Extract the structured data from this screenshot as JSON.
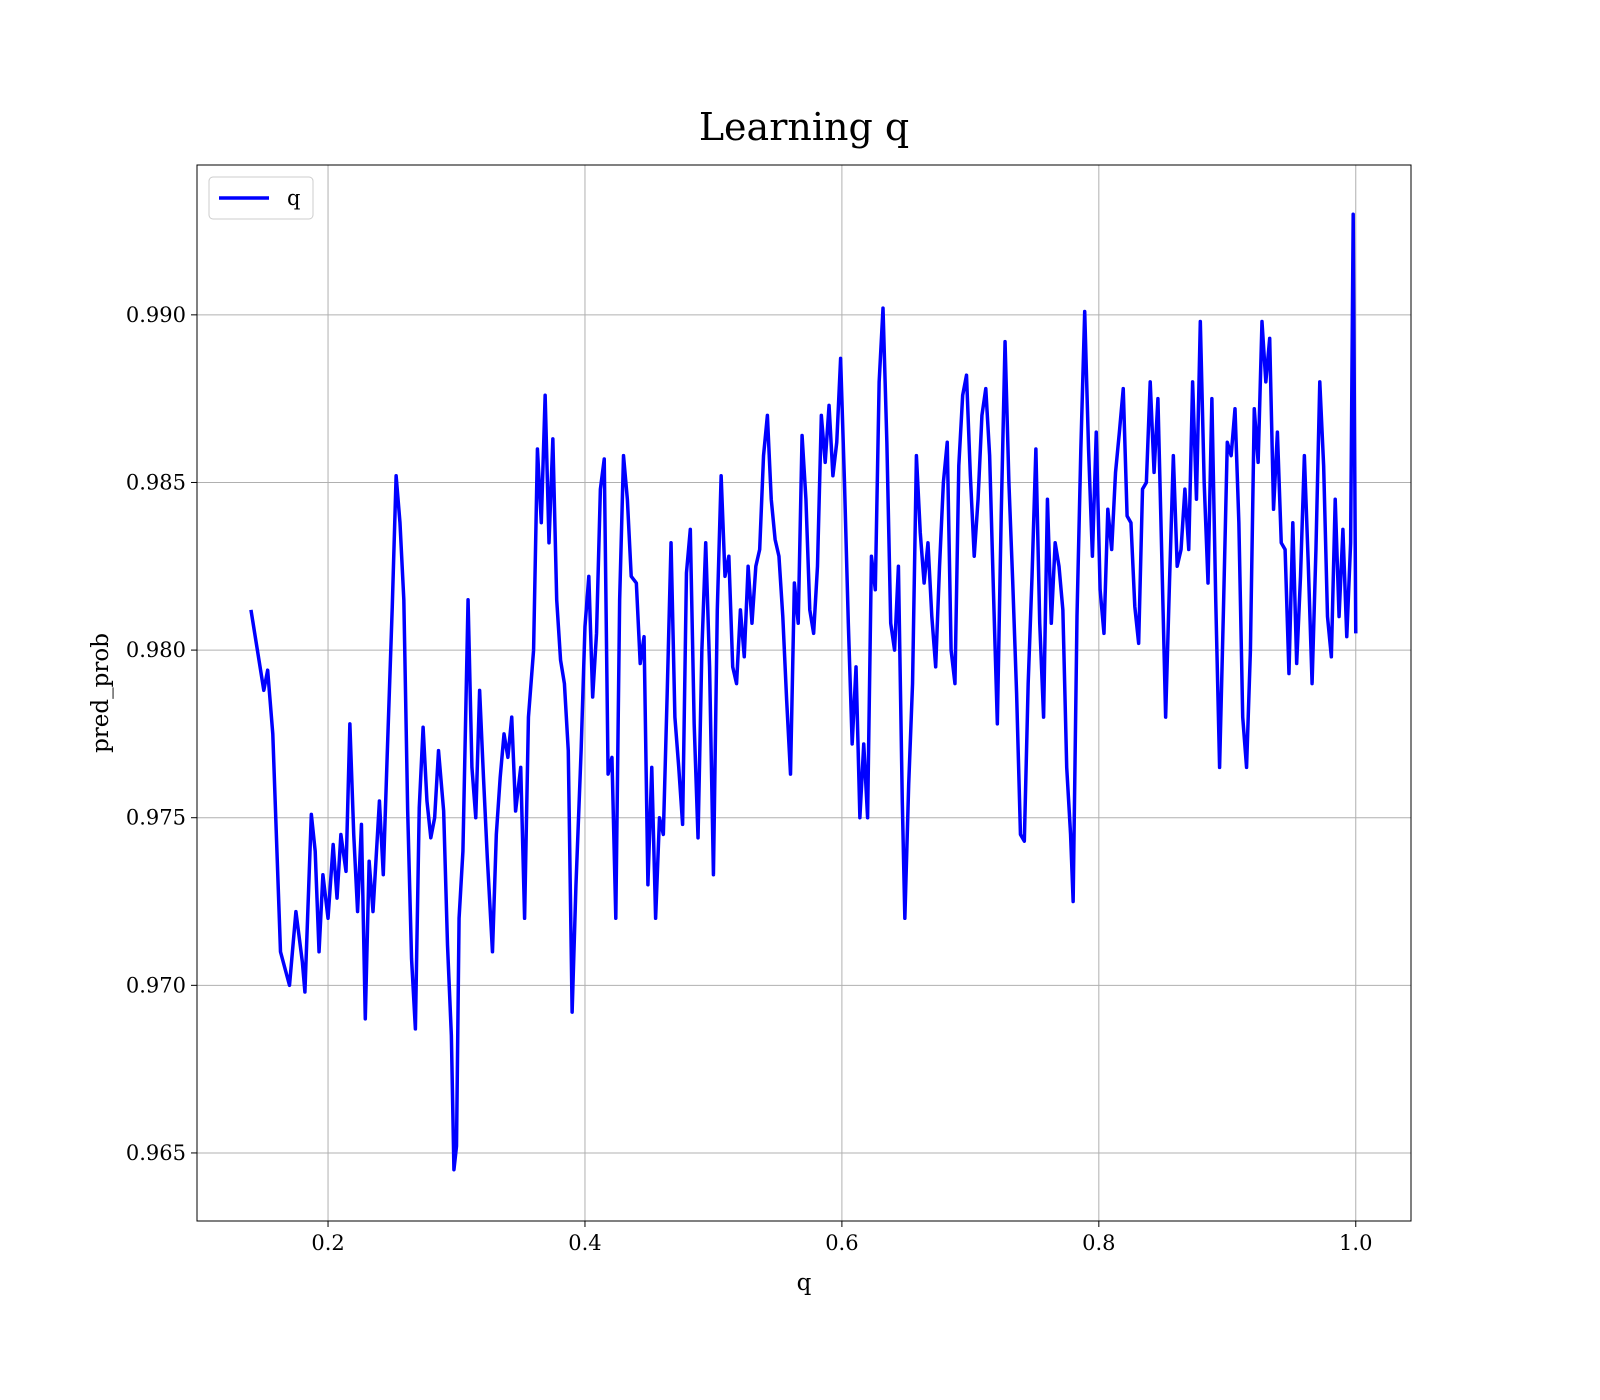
{
  "chart_data": {
    "type": "line",
    "title": "Learning q",
    "xlabel": "q",
    "ylabel": "pred_prob",
    "grid": true,
    "legend": "upper left",
    "xlim": [
      0.098,
      1.043
    ],
    "ylim": [
      0.96297,
      0.99447
    ],
    "xticks": [
      0.2,
      0.4,
      0.6,
      0.8,
      {
        "value": 1.0,
        "label": "1.0"
      }
    ],
    "yticks": [
      0.965,
      {
        "value": 0.97,
        "label": "0.970"
      },
      0.975,
      {
        "value": 0.98,
        "label": "0.980"
      },
      0.985,
      {
        "value": 0.99,
        "label": "0.990"
      }
    ],
    "x": [
      0.14,
      0.15,
      0.153,
      0.157,
      0.163,
      0.17,
      0.175,
      0.18,
      0.182,
      0.187,
      0.19,
      0.193,
      0.196,
      0.2,
      0.204,
      0.207,
      0.21,
      0.214,
      0.217,
      0.22,
      0.223,
      0.226,
      0.229,
      0.232,
      0.235,
      0.24,
      0.243,
      0.246,
      0.25,
      0.253,
      0.256,
      0.259,
      0.262,
      0.265,
      0.268,
      0.271,
      0.274,
      0.277,
      0.28,
      0.283,
      0.286,
      0.29,
      0.293,
      0.296,
      0.298,
      0.3,
      0.302,
      0.305,
      0.309,
      0.312,
      0.315,
      0.318,
      0.321,
      0.324,
      0.328,
      0.331,
      0.334,
      0.337,
      0.34,
      0.343,
      0.346,
      0.35,
      0.353,
      0.356,
      0.36,
      0.363,
      0.366,
      0.369,
      0.372,
      0.375,
      0.378,
      0.381,
      0.384,
      0.387,
      0.39,
      0.393,
      0.397,
      0.4,
      0.403,
      0.406,
      0.409,
      0.412,
      0.415,
      0.418,
      0.421,
      0.424,
      0.427,
      0.43,
      0.433,
      0.436,
      0.44,
      0.443,
      0.446,
      0.449,
      0.452,
      0.455,
      0.458,
      0.461,
      0.464,
      0.467,
      0.47,
      0.473,
      0.476,
      0.479,
      0.482,
      0.485,
      0.488,
      0.491,
      0.494,
      0.497,
      0.5,
      0.503,
      0.506,
      0.509,
      0.512,
      0.515,
      0.518,
      0.521,
      0.524,
      0.527,
      0.53,
      0.533,
      0.536,
      0.539,
      0.542,
      0.545,
      0.548,
      0.551,
      0.554,
      0.557,
      0.56,
      0.563,
      0.566,
      0.569,
      0.572,
      0.575,
      0.578,
      0.581,
      0.584,
      0.587,
      0.59,
      0.593,
      0.596,
      0.599,
      0.602,
      0.605,
      0.608,
      0.611,
      0.614,
      0.617,
      0.62,
      0.623,
      0.626,
      0.629,
      0.632,
      0.635,
      0.638,
      0.641,
      0.644,
      0.647,
      0.649,
      0.652,
      0.655,
      0.658,
      0.661,
      0.664,
      0.667,
      0.67,
      0.673,
      0.676,
      0.679,
      0.682,
      0.685,
      0.688,
      0.691,
      0.694,
      0.697,
      0.7,
      0.703,
      0.706,
      0.709,
      0.712,
      0.715,
      0.718,
      0.721,
      0.724,
      0.727,
      0.73,
      0.733,
      0.736,
      0.739,
      0.742,
      0.745,
      0.748,
      0.751,
      0.754,
      0.757,
      0.76,
      0.763,
      0.766,
      0.769,
      0.772,
      0.775,
      0.778,
      0.78,
      0.783,
      0.786,
      0.789,
      0.792,
      0.795,
      0.798,
      0.801,
      0.804,
      0.807,
      0.81,
      0.813,
      0.816,
      0.819,
      0.822,
      0.825,
      0.828,
      0.831,
      0.834,
      0.837,
      0.84,
      0.843,
      0.846,
      0.849,
      0.852,
      0.855,
      0.858,
      0.861,
      0.864,
      0.867,
      0.87,
      0.873,
      0.876,
      0.879,
      0.882,
      0.885,
      0.888,
      0.891,
      0.894,
      0.897,
      0.9,
      0.903,
      0.906,
      0.909,
      0.912,
      0.915,
      0.918,
      0.921,
      0.924,
      0.927,
      0.93,
      0.933,
      0.936,
      0.939,
      0.942,
      0.945,
      0.948,
      0.951,
      0.954,
      0.957,
      0.96,
      0.963,
      0.966,
      0.969,
      0.972,
      0.975,
      0.978,
      0.981,
      0.984,
      0.987,
      0.99,
      0.993,
      0.996,
      0.998,
      1.0
    ],
    "series": [
      {
        "name": "q",
        "color": "#0000ff",
        "values": [
          0.9812,
          0.9788,
          0.9794,
          0.9775,
          0.971,
          0.97,
          0.9722,
          0.9707,
          0.9698,
          0.9751,
          0.974,
          0.971,
          0.9733,
          0.972,
          0.9742,
          0.9726,
          0.9745,
          0.9734,
          0.9778,
          0.9745,
          0.9722,
          0.9748,
          0.969,
          0.9737,
          0.9722,
          0.9755,
          0.9733,
          0.9768,
          0.9813,
          0.9852,
          0.9838,
          0.9815,
          0.9752,
          0.9708,
          0.9687,
          0.9753,
          0.9777,
          0.9755,
          0.9744,
          0.975,
          0.977,
          0.9752,
          0.9712,
          0.9685,
          0.9645,
          0.9652,
          0.972,
          0.974,
          0.9815,
          0.9765,
          0.975,
          0.9788,
          0.9762,
          0.9738,
          0.971,
          0.9745,
          0.9762,
          0.9775,
          0.9768,
          0.978,
          0.9752,
          0.9765,
          0.972,
          0.978,
          0.98,
          0.986,
          0.9838,
          0.9876,
          0.9832,
          0.9863,
          0.9815,
          0.9797,
          0.979,
          0.977,
          0.9692,
          0.973,
          0.977,
          0.9807,
          0.9822,
          0.9786,
          0.9805,
          0.9848,
          0.9857,
          0.9763,
          0.9768,
          0.972,
          0.9815,
          0.9858,
          0.9845,
          0.9822,
          0.982,
          0.9796,
          0.9804,
          0.973,
          0.9765,
          0.972,
          0.975,
          0.9745,
          0.9787,
          0.9832,
          0.978,
          0.9765,
          0.9748,
          0.9823,
          0.9836,
          0.9778,
          0.9744,
          0.98,
          0.9832,
          0.9795,
          0.9733,
          0.9812,
          0.9852,
          0.9822,
          0.9828,
          0.9795,
          0.979,
          0.9812,
          0.9798,
          0.9825,
          0.9808,
          0.9825,
          0.983,
          0.9858,
          0.987,
          0.9845,
          0.9833,
          0.9828,
          0.981,
          0.9785,
          0.9763,
          0.982,
          0.9808,
          0.9864,
          0.9845,
          0.9812,
          0.9805,
          0.9825,
          0.987,
          0.9856,
          0.9873,
          0.9852,
          0.9862,
          0.9887,
          0.985,
          0.9808,
          0.9772,
          0.9795,
          0.975,
          0.9772,
          0.975,
          0.9828,
          0.9818,
          0.988,
          0.9902,
          0.9862,
          0.9808,
          0.98,
          0.9825,
          0.9755,
          0.972,
          0.976,
          0.979,
          0.9858,
          0.9835,
          0.982,
          0.9832,
          0.981,
          0.9795,
          0.9825,
          0.985,
          0.9862,
          0.98,
          0.979,
          0.9855,
          0.9876,
          0.9882,
          0.9852,
          0.9828,
          0.9845,
          0.987,
          0.9878,
          0.9858,
          0.9817,
          0.9778,
          0.984,
          0.9892,
          0.985,
          0.982,
          0.9787,
          0.9745,
          0.9743,
          0.979,
          0.9822,
          0.986,
          0.9808,
          0.978,
          0.9845,
          0.9808,
          0.9832,
          0.9825,
          0.9812,
          0.9765,
          0.9745,
          0.9725,
          0.981,
          0.986,
          0.9901,
          0.986,
          0.9828,
          0.9865,
          0.9818,
          0.9805,
          0.9842,
          0.983,
          0.9853,
          0.9865,
          0.9878,
          0.984,
          0.9838,
          0.9813,
          0.9802,
          0.9848,
          0.985,
          0.988,
          0.9853,
          0.9875,
          0.9828,
          0.978,
          0.982,
          0.9858,
          0.9825,
          0.983,
          0.9848,
          0.983,
          0.988,
          0.9845,
          0.9898,
          0.985,
          0.982,
          0.9875,
          0.9815,
          0.9765,
          0.9812,
          0.9862,
          0.9858,
          0.9872,
          0.9838,
          0.978,
          0.9765,
          0.98,
          0.9872,
          0.9856,
          0.9898,
          0.988,
          0.9893,
          0.9842,
          0.9865,
          0.9832,
          0.983,
          0.9793,
          0.9838,
          0.9796,
          0.9822,
          0.9858,
          0.9826,
          0.979,
          0.983,
          0.988,
          0.9855,
          0.981,
          0.9798,
          0.9845,
          0.981,
          0.9836,
          0.9804,
          0.9832,
          0.993,
          0.9805
        ]
      }
    ]
  }
}
